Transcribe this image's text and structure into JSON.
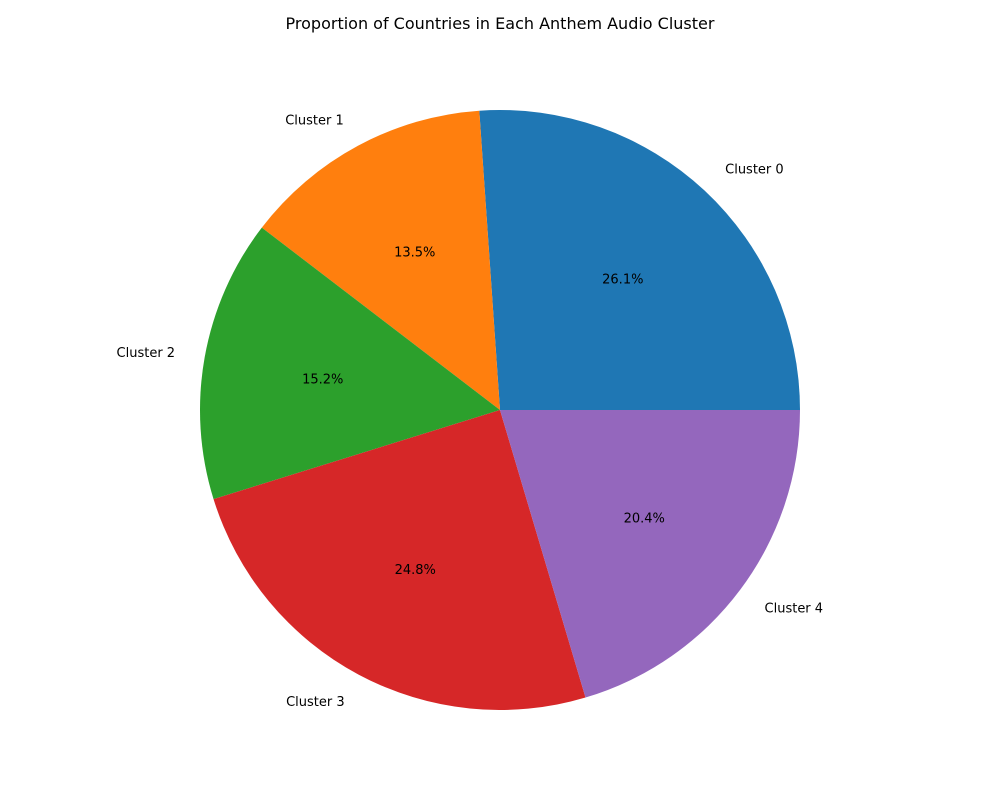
{
  "chart_data": {
    "type": "pie",
    "title": "Proportion of Countries in Each Anthem Audio Cluster",
    "categories": [
      "Cluster 0",
      "Cluster 1",
      "Cluster 2",
      "Cluster 3",
      "Cluster 4"
    ],
    "values": [
      26.1,
      13.5,
      15.2,
      24.8,
      20.4
    ],
    "value_labels": [
      "26.1%",
      "13.5%",
      "15.2%",
      "24.8%",
      "20.4%"
    ],
    "colors": [
      "#1f77b4",
      "#ff7f0e",
      "#2ca02c",
      "#d62728",
      "#9467bd"
    ],
    "start_angle_deg": 0,
    "direction": "counterclockwise",
    "legend": "none"
  }
}
